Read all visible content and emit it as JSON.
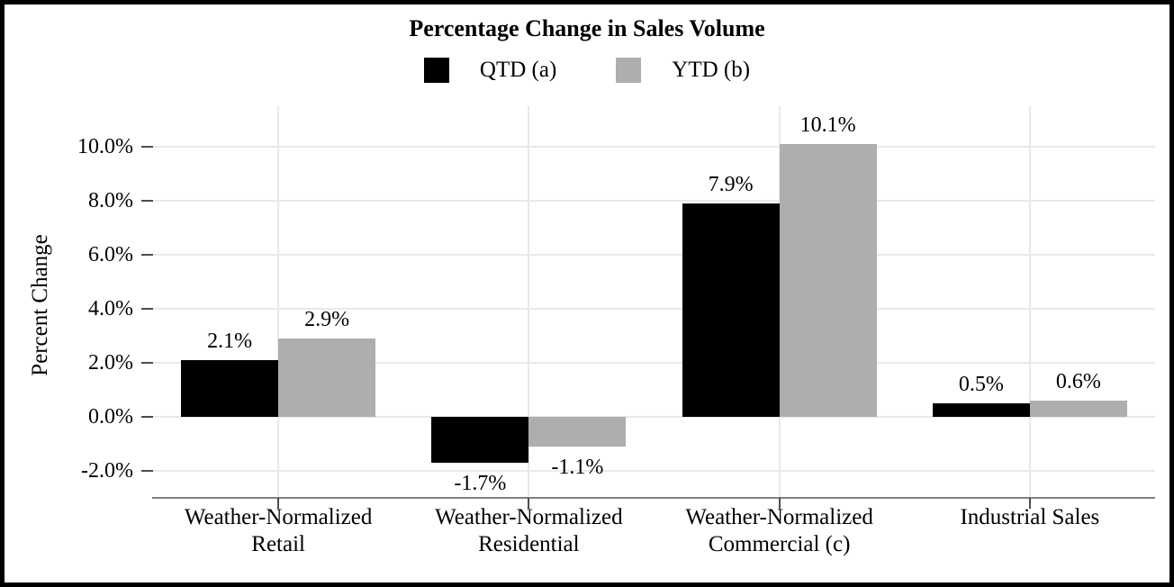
{
  "chart_data": {
    "type": "bar",
    "title": "Percentage Change in Sales Volume",
    "xlabel": "",
    "ylabel": "Percent Change",
    "categories": [
      "Weather-Normalized Retail",
      "Weather-Normalized Residential",
      "Weather-Normalized Commercial (c)",
      "Industrial Sales"
    ],
    "category_label_lines": [
      [
        "Weather-Normalized",
        "Retail"
      ],
      [
        "Weather-Normalized",
        "Residential"
      ],
      [
        "Weather-Normalized",
        "Commercial (c)"
      ],
      [
        "Industrial Sales"
      ]
    ],
    "series": [
      {
        "name": "QTD (a)",
        "color": "#000000",
        "values": [
          2.1,
          -1.7,
          7.9,
          0.5
        ],
        "labels": [
          "2.1%",
          "-1.7%",
          "7.9%",
          "0.5%"
        ]
      },
      {
        "name": "YTD (b)",
        "color": "#aeaeae",
        "values": [
          2.9,
          -1.1,
          10.1,
          0.6
        ],
        "labels": [
          "2.9%",
          "-1.1%",
          "10.1%",
          "0.6%"
        ]
      }
    ],
    "y_ticks": [
      {
        "value": 10,
        "label": "10.0%"
      },
      {
        "value": 8,
        "label": "8.0%"
      },
      {
        "value": 6,
        "label": "6.0%"
      },
      {
        "value": 4,
        "label": "4.0%"
      },
      {
        "value": 2,
        "label": "2.0%"
      },
      {
        "value": 0,
        "label": "0.0%"
      },
      {
        "value": -2,
        "label": "-2.0%"
      }
    ],
    "ylim": [
      -3.0,
      11.5
    ],
    "grid": "light gray horizontal gridlines at each tick plus vertical gridline at each category center",
    "legend_position": "top center"
  },
  "colors": {
    "background": "#ffffff",
    "frame_border": "#000000",
    "gridline": "#e9e9e9",
    "axis_line": "#7f7f7f",
    "tick_mark": "#4d4d4d",
    "text": "#000000",
    "series_qtd": "#000000",
    "series_ytd": "#aeaeae"
  }
}
